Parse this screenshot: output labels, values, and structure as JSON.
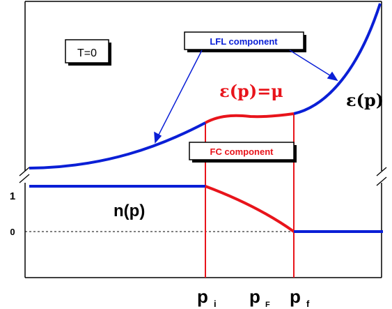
{
  "labels": {
    "temperature": "T=0",
    "lfl_component": "LFL component",
    "fc_component": "FC component",
    "epsilon_p": "ε(p)",
    "epsilon_eq_mu": "ε(p)=μ",
    "n_p": "n(p)",
    "y_tick_one": "1",
    "y_tick_zero": "0",
    "p_i": "p",
    "p_i_sub": "i",
    "p_F": "p",
    "p_F_sub": "F",
    "p_f": "p",
    "p_f_sub": "f"
  },
  "colors": {
    "lfl": "#0a1fd6",
    "fc": "#e8141b",
    "frame": "#000000"
  }
}
